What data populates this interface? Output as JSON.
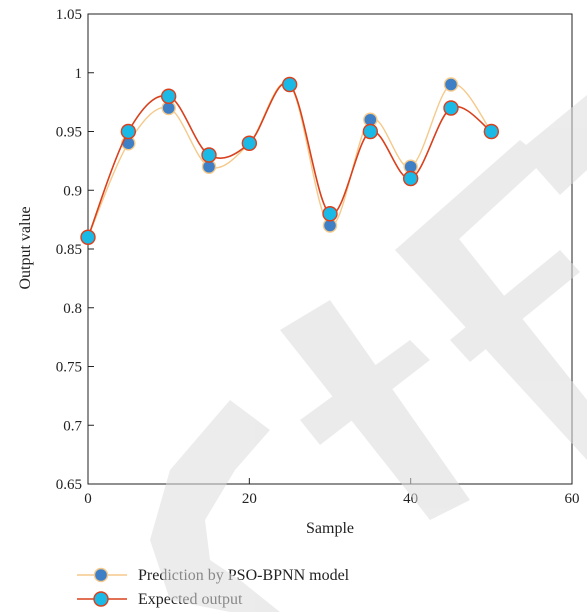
{
  "chart_data": {
    "type": "line",
    "xlabel": "Sample",
    "ylabel": "Output value",
    "xlim": [
      0,
      60
    ],
    "ylim": [
      0.65,
      1.05
    ],
    "x_ticks": [
      "0",
      "20",
      "40",
      "60"
    ],
    "y_ticks": [
      "0.65",
      "0.7",
      "0.75",
      "0.8",
      "0.85",
      "0.9",
      "0.95",
      "1",
      "1.05"
    ],
    "grid": false,
    "legend_position": "bottom-left",
    "series": [
      {
        "name": "Prediction by PSO-BPNN model",
        "line_color": "#f5c98a",
        "marker_color": "#3f7fc6",
        "x": [
          0,
          5,
          10,
          15,
          20,
          25,
          30,
          35,
          40,
          45,
          50
        ],
        "values": [
          0.86,
          0.94,
          0.97,
          0.92,
          0.94,
          0.99,
          0.87,
          0.96,
          0.92,
          0.99,
          0.95
        ]
      },
      {
        "name": "Expected output",
        "line_color": "#d9401c",
        "marker_color": "#1ab9e6",
        "x": [
          0,
          5,
          10,
          15,
          20,
          25,
          30,
          35,
          40,
          45,
          50
        ],
        "values": [
          0.86,
          0.95,
          0.98,
          0.93,
          0.94,
          0.99,
          0.88,
          0.95,
          0.91,
          0.97,
          0.95
        ]
      }
    ]
  },
  "watermark_text": "RETRACTED"
}
